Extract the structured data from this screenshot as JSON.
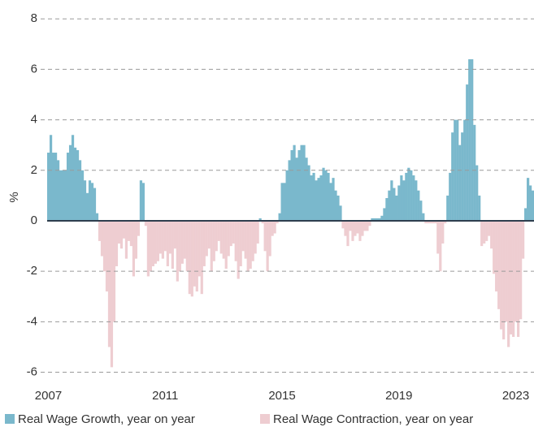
{
  "chart_data": {
    "type": "bar",
    "y_label": "%",
    "categories": [
      "2007",
      null,
      null,
      null,
      null,
      null,
      null,
      null,
      null,
      null,
      null,
      null,
      null,
      null,
      null,
      null,
      null,
      null,
      null,
      null,
      null,
      null,
      null,
      null,
      null,
      null,
      null,
      null,
      null,
      null,
      null,
      null,
      null,
      null,
      null,
      null,
      null,
      null,
      null,
      null,
      null,
      null,
      null,
      null,
      null,
      null,
      null,
      null,
      "2011",
      null,
      null,
      null,
      null,
      null,
      null,
      null,
      null,
      null,
      null,
      null,
      null,
      null,
      null,
      null,
      null,
      null,
      null,
      null,
      null,
      null,
      null,
      null,
      null,
      null,
      null,
      null,
      null,
      null,
      null,
      null,
      null,
      null,
      null,
      null,
      null,
      null,
      null,
      null,
      null,
      null,
      null,
      null,
      null,
      null,
      null,
      null,
      "2015",
      null,
      null,
      null,
      null,
      null,
      null,
      null,
      null,
      null,
      null,
      null,
      null,
      null,
      null,
      null,
      null,
      null,
      null,
      null,
      null,
      null,
      null,
      null,
      null,
      null,
      null,
      null,
      null,
      null,
      null,
      null,
      null,
      null,
      null,
      null,
      null,
      null,
      null,
      null,
      null,
      null,
      null,
      null,
      null,
      null,
      null,
      null,
      "2019",
      null,
      null,
      null,
      null,
      null,
      null,
      null,
      null,
      null,
      null,
      null,
      null,
      null,
      null,
      null,
      null,
      null,
      null,
      null,
      null,
      null,
      null,
      null,
      null,
      null,
      null,
      null,
      null,
      null,
      null,
      null,
      null,
      null,
      null,
      null,
      null,
      null,
      null,
      null,
      null,
      null,
      null,
      null,
      null,
      null,
      null,
      null,
      "2023",
      null,
      null,
      null,
      null,
      null,
      null,
      null
    ],
    "series": [
      {
        "name": "Real Wage Growth, year on year",
        "color": "#7ab8cc",
        "values": [
          2.7,
          3.4,
          2.7,
          2.7,
          2.4,
          2.0,
          2.0,
          2.0,
          2.7,
          3.0,
          3.4,
          2.9,
          2.8,
          2.4,
          2.0,
          1.6,
          1.1,
          1.6,
          1.5,
          1.3,
          0.3,
          null,
          null,
          null,
          null,
          null,
          null,
          null,
          null,
          null,
          null,
          null,
          null,
          null,
          null,
          null,
          null,
          null,
          1.6,
          1.5,
          null,
          null,
          null,
          null,
          null,
          null,
          null,
          null,
          null,
          null,
          null,
          null,
          null,
          null,
          null,
          null,
          null,
          null,
          null,
          null,
          null,
          null,
          null,
          null,
          null,
          null,
          null,
          null,
          null,
          null,
          null,
          null,
          null,
          null,
          null,
          null,
          null,
          null,
          null,
          null,
          null,
          null,
          null,
          null,
          null,
          null,
          null,
          0.1,
          null,
          null,
          null,
          null,
          null,
          null,
          null,
          0.3,
          1.5,
          1.5,
          2.0,
          2.4,
          2.8,
          3.0,
          2.5,
          2.8,
          3.0,
          3.0,
          2.5,
          2.2,
          1.8,
          1.9,
          1.6,
          1.7,
          1.8,
          2.1,
          2.0,
          1.9,
          1.5,
          1.7,
          1.2,
          1.0,
          0.6,
          null,
          null,
          null,
          null,
          null,
          null,
          null,
          null,
          null,
          null,
          null,
          null,
          0.1,
          0.1,
          0.1,
          0.1,
          0.2,
          0.5,
          0.9,
          1.2,
          1.6,
          1.3,
          1.0,
          1.4,
          1.8,
          1.6,
          1.9,
          2.1,
          2.0,
          1.8,
          1.6,
          1.2,
          0.8,
          0.3,
          null,
          null,
          null,
          null,
          null,
          null,
          null,
          null,
          null,
          1.0,
          1.9,
          3.5,
          4.0,
          4.0,
          3.0,
          3.5,
          4.0,
          5.4,
          6.4,
          6.4,
          3.8,
          2.2,
          1.0,
          null,
          null,
          null,
          null,
          null,
          null,
          null,
          null,
          null,
          null,
          null,
          null,
          null,
          null,
          null,
          null,
          null,
          null,
          0.5,
          1.7,
          1.4,
          1.2
        ]
      },
      {
        "name": "Real Wage Contraction, year on year",
        "color": "#eecdd1",
        "values": [
          null,
          null,
          null,
          null,
          null,
          null,
          null,
          null,
          null,
          null,
          null,
          null,
          null,
          null,
          null,
          null,
          null,
          null,
          null,
          null,
          null,
          -0.8,
          -1.4,
          -2.0,
          -2.8,
          -5.0,
          -5.8,
          -4.0,
          -1.8,
          -0.9,
          -1.1,
          -0.7,
          -1.5,
          -0.8,
          -1.0,
          -2.2,
          -1.5,
          -0.6,
          null,
          null,
          -0.2,
          -2.2,
          -2.0,
          -1.8,
          -1.7,
          -1.6,
          -1.3,
          -1.5,
          -1.2,
          -1.8,
          -1.3,
          -1.9,
          -1.1,
          -2.4,
          -2.0,
          -1.7,
          -1.5,
          -2.0,
          -2.9,
          -3.0,
          -2.6,
          -2.8,
          -2.2,
          -2.9,
          -1.8,
          -1.4,
          -1.1,
          -2.0,
          -1.6,
          -1.2,
          -0.8,
          -1.3,
          -1.5,
          -1.9,
          -1.4,
          -1.0,
          -0.9,
          -1.6,
          -2.3,
          -1.8,
          -1.2,
          -1.5,
          -2.0,
          -1.9,
          -1.6,
          -1.3,
          -0.9,
          null,
          -0.1,
          -1.2,
          -2.0,
          -1.4,
          -0.6,
          -0.5,
          -0.1,
          null,
          null,
          null,
          null,
          null,
          null,
          null,
          null,
          null,
          null,
          null,
          null,
          null,
          null,
          null,
          null,
          null,
          null,
          null,
          null,
          null,
          null,
          null,
          null,
          null,
          null,
          -0.3,
          -0.6,
          -1.0,
          -0.4,
          -0.8,
          -0.6,
          -0.5,
          -0.8,
          -0.6,
          -0.4,
          -0.4,
          -0.2,
          null,
          null,
          null,
          null,
          null,
          null,
          null,
          null,
          null,
          null,
          null,
          null,
          null,
          null,
          null,
          null,
          null,
          null,
          null,
          null,
          null,
          null,
          -0.1,
          -0.1,
          -0.1,
          -0.1,
          -0.1,
          -1.3,
          -2.0,
          -0.9,
          -0.1,
          null,
          null,
          null,
          null,
          null,
          null,
          null,
          null,
          null,
          null,
          null,
          null,
          null,
          null,
          -1.0,
          -0.9,
          -0.8,
          -0.6,
          -1.1,
          -2.1,
          -2.8,
          -3.5,
          -4.3,
          -4.7,
          -4.0,
          -5.0,
          -4.5,
          -4.6,
          -4.0,
          -4.6,
          -3.9,
          -1.5,
          null,
          null,
          null,
          null
        ]
      }
    ],
    "ylim": [
      -6.4,
      8.4
    ],
    "yticks": [
      -6,
      -4,
      -2,
      0,
      2,
      4,
      6,
      8
    ],
    "grid": true
  }
}
